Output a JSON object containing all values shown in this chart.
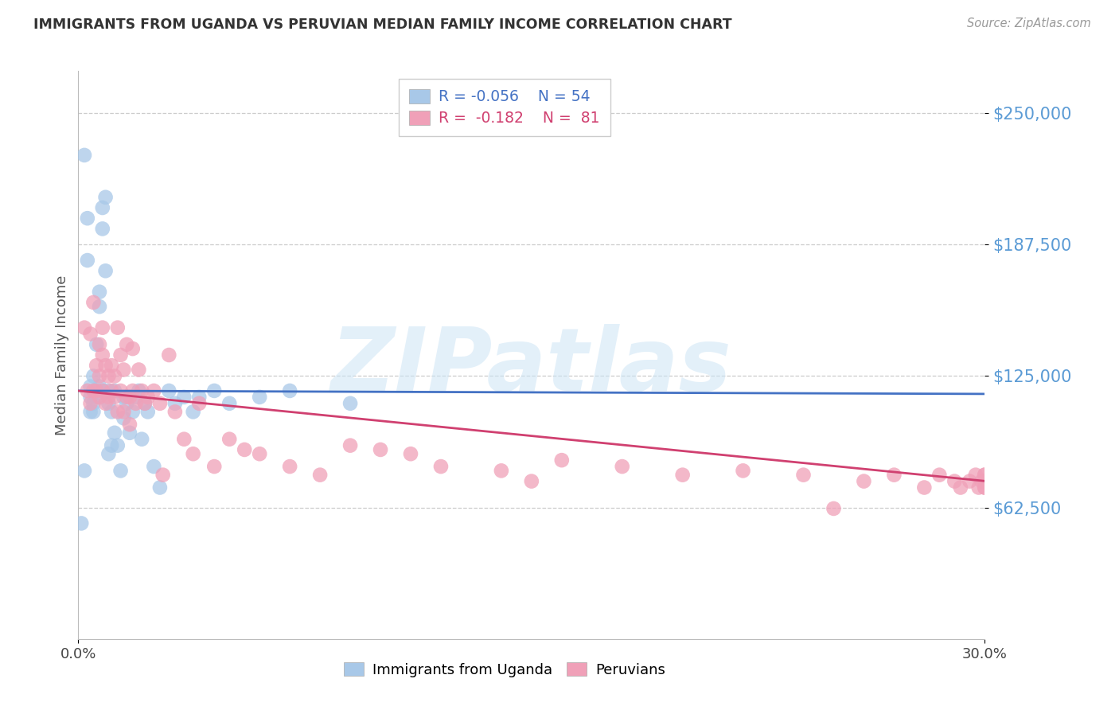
{
  "title": "IMMIGRANTS FROM UGANDA VS PERUVIAN MEDIAN FAMILY INCOME CORRELATION CHART",
  "source": "Source: ZipAtlas.com",
  "ylabel": "Median Family Income",
  "xlim": [
    0.0,
    0.3
  ],
  "ylim": [
    0,
    270000
  ],
  "yticks": [
    62500,
    125000,
    187500,
    250000
  ],
  "ytick_labels": [
    "$62,500",
    "$125,000",
    "$187,500",
    "$250,000"
  ],
  "xticks": [
    0.0,
    0.3
  ],
  "xtick_labels": [
    "0.0%",
    "30.0%"
  ],
  "color_uganda": "#a8c8e8",
  "color_peru": "#f0a0b8",
  "color_uganda_line": "#4472c4",
  "color_peru_line": "#d04070",
  "color_ytick": "#5b9bd5",
  "watermark_text": "ZIPatlas",
  "background": "#ffffff",
  "uganda_points_x": [
    0.001,
    0.002,
    0.002,
    0.003,
    0.003,
    0.004,
    0.004,
    0.004,
    0.005,
    0.005,
    0.005,
    0.005,
    0.006,
    0.006,
    0.006,
    0.007,
    0.007,
    0.007,
    0.008,
    0.008,
    0.008,
    0.009,
    0.009,
    0.01,
    0.01,
    0.01,
    0.011,
    0.011,
    0.012,
    0.012,
    0.013,
    0.014,
    0.015,
    0.015,
    0.016,
    0.017,
    0.018,
    0.019,
    0.02,
    0.021,
    0.022,
    0.023,
    0.025,
    0.027,
    0.03,
    0.032,
    0.035,
    0.038,
    0.04,
    0.045,
    0.05,
    0.06,
    0.07,
    0.09
  ],
  "uganda_points_y": [
    55000,
    80000,
    230000,
    180000,
    200000,
    115000,
    120000,
    108000,
    118000,
    112000,
    125000,
    108000,
    140000,
    118000,
    115000,
    158000,
    165000,
    120000,
    195000,
    205000,
    118000,
    175000,
    210000,
    118000,
    112000,
    88000,
    92000,
    108000,
    118000,
    98000,
    92000,
    80000,
    105000,
    115000,
    112000,
    98000,
    108000,
    115000,
    118000,
    95000,
    112000,
    108000,
    82000,
    72000,
    118000,
    112000,
    115000,
    108000,
    115000,
    118000,
    112000,
    115000,
    118000,
    112000
  ],
  "peru_points_x": [
    0.002,
    0.003,
    0.004,
    0.004,
    0.005,
    0.005,
    0.006,
    0.006,
    0.007,
    0.007,
    0.007,
    0.008,
    0.008,
    0.008,
    0.009,
    0.009,
    0.01,
    0.01,
    0.011,
    0.011,
    0.012,
    0.012,
    0.013,
    0.013,
    0.014,
    0.014,
    0.015,
    0.015,
    0.016,
    0.016,
    0.017,
    0.017,
    0.018,
    0.018,
    0.019,
    0.02,
    0.021,
    0.022,
    0.023,
    0.025,
    0.027,
    0.028,
    0.03,
    0.032,
    0.035,
    0.038,
    0.04,
    0.045,
    0.05,
    0.055,
    0.06,
    0.07,
    0.08,
    0.09,
    0.1,
    0.11,
    0.12,
    0.14,
    0.15,
    0.16,
    0.18,
    0.2,
    0.22,
    0.24,
    0.25,
    0.26,
    0.27,
    0.28,
    0.285,
    0.29,
    0.292,
    0.295,
    0.297,
    0.298,
    0.299,
    0.3,
    0.3,
    0.3,
    0.3,
    0.3,
    0.3
  ],
  "peru_points_y": [
    148000,
    118000,
    145000,
    112000,
    160000,
    118000,
    130000,
    118000,
    140000,
    125000,
    115000,
    148000,
    135000,
    118000,
    130000,
    112000,
    125000,
    115000,
    130000,
    118000,
    125000,
    115000,
    148000,
    108000,
    135000,
    118000,
    128000,
    108000,
    140000,
    115000,
    115000,
    102000,
    138000,
    118000,
    112000,
    128000,
    118000,
    112000,
    115000,
    118000,
    112000,
    78000,
    135000,
    108000,
    95000,
    88000,
    112000,
    82000,
    95000,
    90000,
    88000,
    82000,
    78000,
    92000,
    90000,
    88000,
    82000,
    80000,
    75000,
    85000,
    82000,
    78000,
    80000,
    78000,
    62000,
    75000,
    78000,
    72000,
    78000,
    75000,
    72000,
    75000,
    78000,
    72000,
    75000,
    78000,
    72000,
    75000,
    78000,
    72000,
    75000
  ]
}
